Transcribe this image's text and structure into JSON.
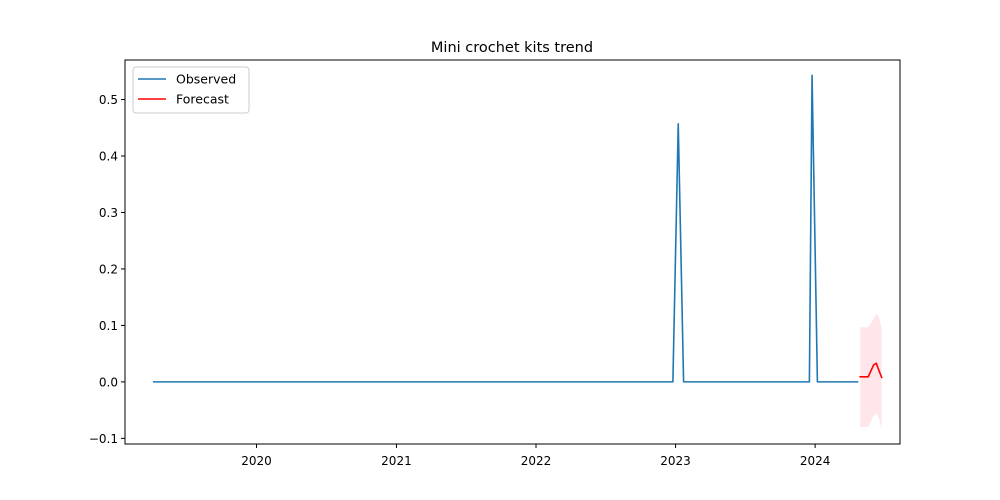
{
  "chart_data": {
    "type": "line",
    "title": "Mini crochet kits trend",
    "xlabel": "",
    "ylabel": "",
    "xlim": [
      "2019-01-22",
      "2024-08-10"
    ],
    "ylim": [
      -0.11,
      0.57
    ],
    "x_ticks": [
      {
        "date": "2020-01-01",
        "label": "2020"
      },
      {
        "date": "2021-01-01",
        "label": "2021"
      },
      {
        "date": "2022-01-01",
        "label": "2022"
      },
      {
        "date": "2023-01-01",
        "label": "2023"
      },
      {
        "date": "2024-01-01",
        "label": "2024"
      }
    ],
    "y_ticks": [
      {
        "value": -0.1,
        "label": "−0.1"
      },
      {
        "value": 0.0,
        "label": "0.0"
      },
      {
        "value": 0.1,
        "label": "0.1"
      },
      {
        "value": 0.2,
        "label": "0.2"
      },
      {
        "value": 0.3,
        "label": "0.3"
      },
      {
        "value": 0.4,
        "label": "0.4"
      },
      {
        "value": 0.5,
        "label": "0.5"
      }
    ],
    "legend": {
      "placement": "top-left"
    },
    "series": [
      {
        "name": "Observed",
        "color": "#1f77b4",
        "points": [
          {
            "x": "2019-04-07",
            "y": 0
          },
          {
            "x": "2022-12-25",
            "y": 0
          },
          {
            "x": "2023-01-08",
            "y": 0.457
          },
          {
            "x": "2023-01-22",
            "y": 0
          },
          {
            "x": "2023-12-17",
            "y": 0
          },
          {
            "x": "2023-12-24",
            "y": 0.543
          },
          {
            "x": "2024-01-07",
            "y": 0
          },
          {
            "x": "2024-04-21",
            "y": 0
          }
        ]
      },
      {
        "name": "Forecast",
        "color": "#ff0000",
        "points": [
          {
            "x": "2024-04-28",
            "y": 0.009
          },
          {
            "x": "2024-05-19",
            "y": 0.009
          },
          {
            "x": "2024-06-02",
            "y": 0.03
          },
          {
            "x": "2024-06-09",
            "y": 0.033
          },
          {
            "x": "2024-06-16",
            "y": 0.02
          },
          {
            "x": "2024-06-23",
            "y": 0.008
          }
        ]
      }
    ],
    "confidence_band": {
      "color": "#ffc0cb",
      "opacity": 0.4,
      "points": [
        {
          "x": "2024-04-28",
          "lower": -0.08,
          "upper": 0.097
        },
        {
          "x": "2024-05-19",
          "lower": -0.08,
          "upper": 0.097
        },
        {
          "x": "2024-06-02",
          "lower": -0.06,
          "upper": 0.112
        },
        {
          "x": "2024-06-09",
          "lower": -0.055,
          "upper": 0.12
        },
        {
          "x": "2024-06-16",
          "lower": -0.065,
          "upper": 0.115
        },
        {
          "x": "2024-06-23",
          "lower": -0.082,
          "upper": 0.095
        }
      ]
    }
  }
}
